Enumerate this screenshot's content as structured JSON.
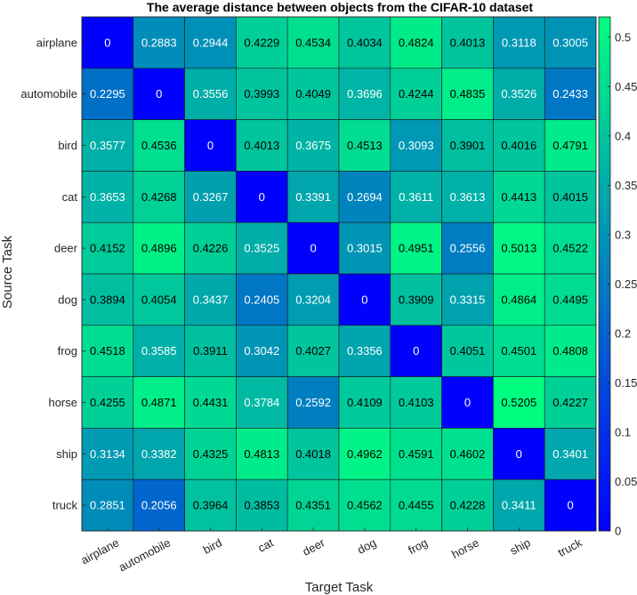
{
  "chart_data": {
    "type": "heatmap",
    "title": "The average distance between objects from the CIFAR-10 dataset",
    "xlabel": "Target Task",
    "ylabel": "Source Task",
    "x_categories": [
      "airplane",
      "automobile",
      "bird",
      "cat",
      "deer",
      "dog",
      "frog",
      "horse",
      "ship",
      "truck"
    ],
    "y_categories": [
      "airplane",
      "automobile",
      "bird",
      "cat",
      "deer",
      "dog",
      "frog",
      "horse",
      "ship",
      "truck"
    ],
    "values": [
      [
        "0",
        "0.2883",
        "0.2944",
        "0.4229",
        "0.4534",
        "0.4034",
        "0.4824",
        "0.4013",
        "0.3118",
        "0.3005"
      ],
      [
        "0.2295",
        "0",
        "0.3556",
        "0.3993",
        "0.4049",
        "0.3696",
        "0.4244",
        "0.4835",
        "0.3526",
        "0.2433"
      ],
      [
        "0.3577",
        "0.4536",
        "0",
        "0.4013",
        "0.3675",
        "0.4513",
        "0.3093",
        "0.3901",
        "0.4016",
        "0.4791"
      ],
      [
        "0.3653",
        "0.4268",
        "0.3267",
        "0",
        "0.3391",
        "0.2694",
        "0.3611",
        "0.3613",
        "0.4413",
        "0.4015"
      ],
      [
        "0.4152",
        "0.4896",
        "0.4226",
        "0.3525",
        "0",
        "0.3015",
        "0.4951",
        "0.2556",
        "0.5013",
        "0.4522"
      ],
      [
        "0.3894",
        "0.4054",
        "0.3437",
        "0.2405",
        "0.3204",
        "0",
        "0.3909",
        "0.3315",
        "0.4864",
        "0.4495"
      ],
      [
        "0.4518",
        "0.3585",
        "0.3911",
        "0.3042",
        "0.4027",
        "0.3356",
        "0",
        "0.4051",
        "0.4501",
        "0.4808"
      ],
      [
        "0.4255",
        "0.4871",
        "0.4431",
        "0.3784",
        "0.2592",
        "0.4109",
        "0.4103",
        "0",
        "0.5205",
        "0.4227"
      ],
      [
        "0.3134",
        "0.3382",
        "0.4325",
        "0.4813",
        "0.4018",
        "0.4962",
        "0.4591",
        "0.4602",
        "0",
        "0.3401"
      ],
      [
        "0.2851",
        "0.2056",
        "0.3964",
        "0.3853",
        "0.4351",
        "0.4562",
        "0.4455",
        "0.4228",
        "0.3411",
        "0"
      ]
    ],
    "colorbar": {
      "min": 0,
      "max": 0.5205,
      "ticks": [
        "0",
        "0.05",
        "0.1",
        "0.15",
        "0.2",
        "0.25",
        "0.3",
        "0.35",
        "0.4",
        "0.45",
        "0.5"
      ],
      "colormap": "winter",
      "color_low": "#0000ff",
      "color_high": "#00ff80"
    }
  }
}
